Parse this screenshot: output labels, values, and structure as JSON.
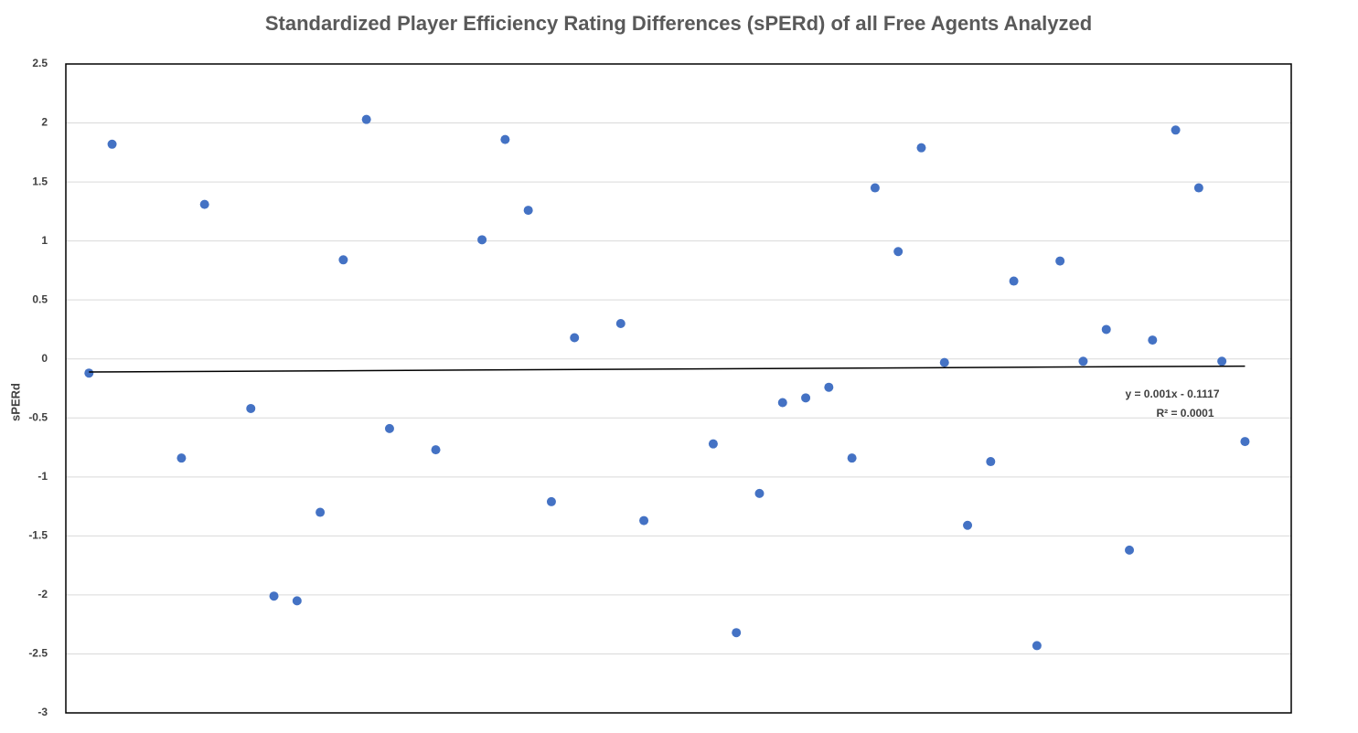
{
  "chart_data": {
    "type": "scatter",
    "title": "Standardized Player Efficiency Rating Differences (sPERd) of all Free Agents Analyzed",
    "y_label": "sPERd",
    "series": [
      {
        "name": "sPERd",
        "color": "#4472c4",
        "x": [
          1,
          2,
          5,
          6,
          8,
          9,
          10,
          11,
          12,
          13,
          14,
          16,
          18,
          19,
          20,
          21,
          22,
          24,
          25,
          28,
          29,
          30,
          31,
          32,
          33,
          34,
          35,
          36,
          37,
          38,
          39,
          40,
          41,
          42,
          43,
          44,
          45,
          46,
          47,
          48,
          49,
          50,
          51
        ],
        "values": [
          -0.12,
          1.82,
          -0.84,
          1.31,
          -0.42,
          -2.01,
          -2.05,
          -1.3,
          0.84,
          2.03,
          -0.59,
          -0.77,
          1.01,
          1.86,
          1.26,
          -1.21,
          0.18,
          0.3,
          -1.37,
          -0.72,
          -2.32,
          -1.14,
          -0.37,
          -0.33,
          -0.24,
          -0.84,
          1.45,
          0.91,
          1.79,
          -0.03,
          -1.41,
          -0.87,
          0.66,
          -2.43,
          0.83,
          -0.02,
          0.25,
          -1.62,
          0.16,
          1.94,
          1.45,
          -0.02,
          -0.7
        ]
      }
    ],
    "trendline": {
      "slope": 0.001,
      "intercept": -0.1117,
      "equation": "y = 0.001x - 0.1117",
      "r_squared": "R² = 0.0001",
      "color": "#000000"
    },
    "xlim": [
      0,
      53
    ],
    "ylim": [
      -3,
      2.5
    ],
    "yticks": [
      -3,
      -2.5,
      -2,
      -1.5,
      -1,
      -0.5,
      0,
      0.5,
      1,
      1.5,
      2,
      2.5
    ],
    "grid": true
  }
}
